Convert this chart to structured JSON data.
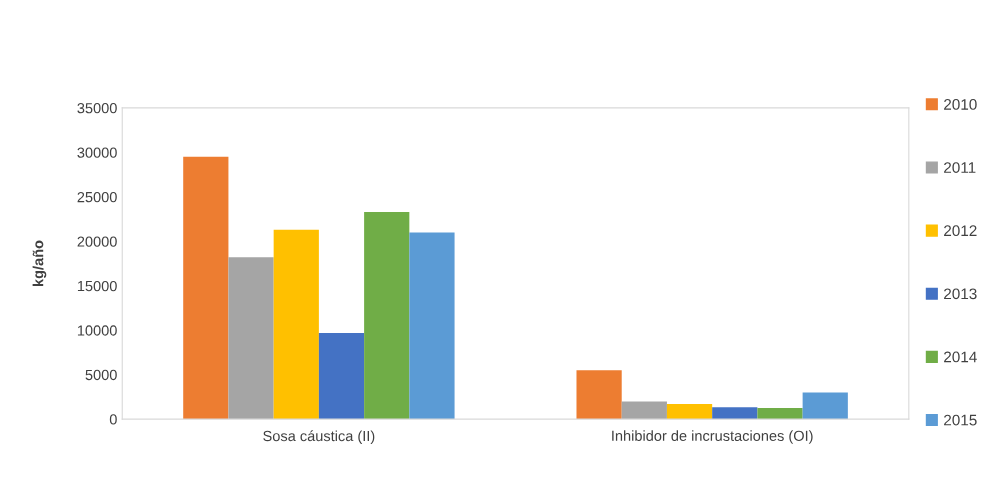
{
  "chart_data": {
    "type": "bar",
    "ylabel": "kg/año",
    "categories": [
      "Sosa cáustica (II)",
      "Inhibidor de incrustaciones (OI)"
    ],
    "series": [
      {
        "name": "2010",
        "color": "#ed7d31",
        "values": [
          29500,
          5500
        ]
      },
      {
        "name": "2011",
        "color": "#a5a5a5",
        "values": [
          18200,
          2000
        ]
      },
      {
        "name": "2012",
        "color": "#ffc000",
        "values": [
          21300,
          1700
        ]
      },
      {
        "name": "2013",
        "color": "#4472c4",
        "values": [
          9700,
          1350
        ]
      },
      {
        "name": "2014",
        "color": "#70ad47",
        "values": [
          23300,
          1250
        ]
      },
      {
        "name": "2015",
        "color": "#5b9bd5",
        "values": [
          21000,
          3000
        ]
      }
    ],
    "ylim": [
      0,
      35000
    ],
    "yticks": [
      0,
      5000,
      10000,
      15000,
      20000,
      25000,
      30000,
      35000
    ],
    "grid": false,
    "legend": "right"
  }
}
